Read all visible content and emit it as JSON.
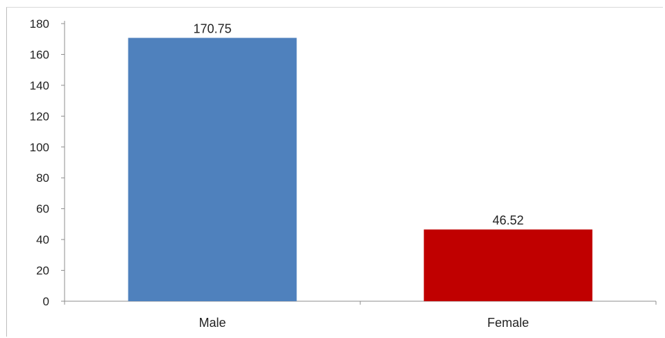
{
  "chart_data": {
    "type": "bar",
    "title": "",
    "xlabel": "",
    "ylabel": "",
    "categories": [
      "Male",
      "Female"
    ],
    "values": [
      170.75,
      46.52
    ],
    "data_labels": [
      "170.75",
      "46.52"
    ],
    "ylim": [
      0,
      180
    ],
    "yticks": [
      0,
      20,
      40,
      60,
      80,
      100,
      120,
      140,
      160,
      180
    ],
    "bar_colors": [
      "#4f81bd",
      "#c00000"
    ],
    "grid": false,
    "legend": "none"
  }
}
